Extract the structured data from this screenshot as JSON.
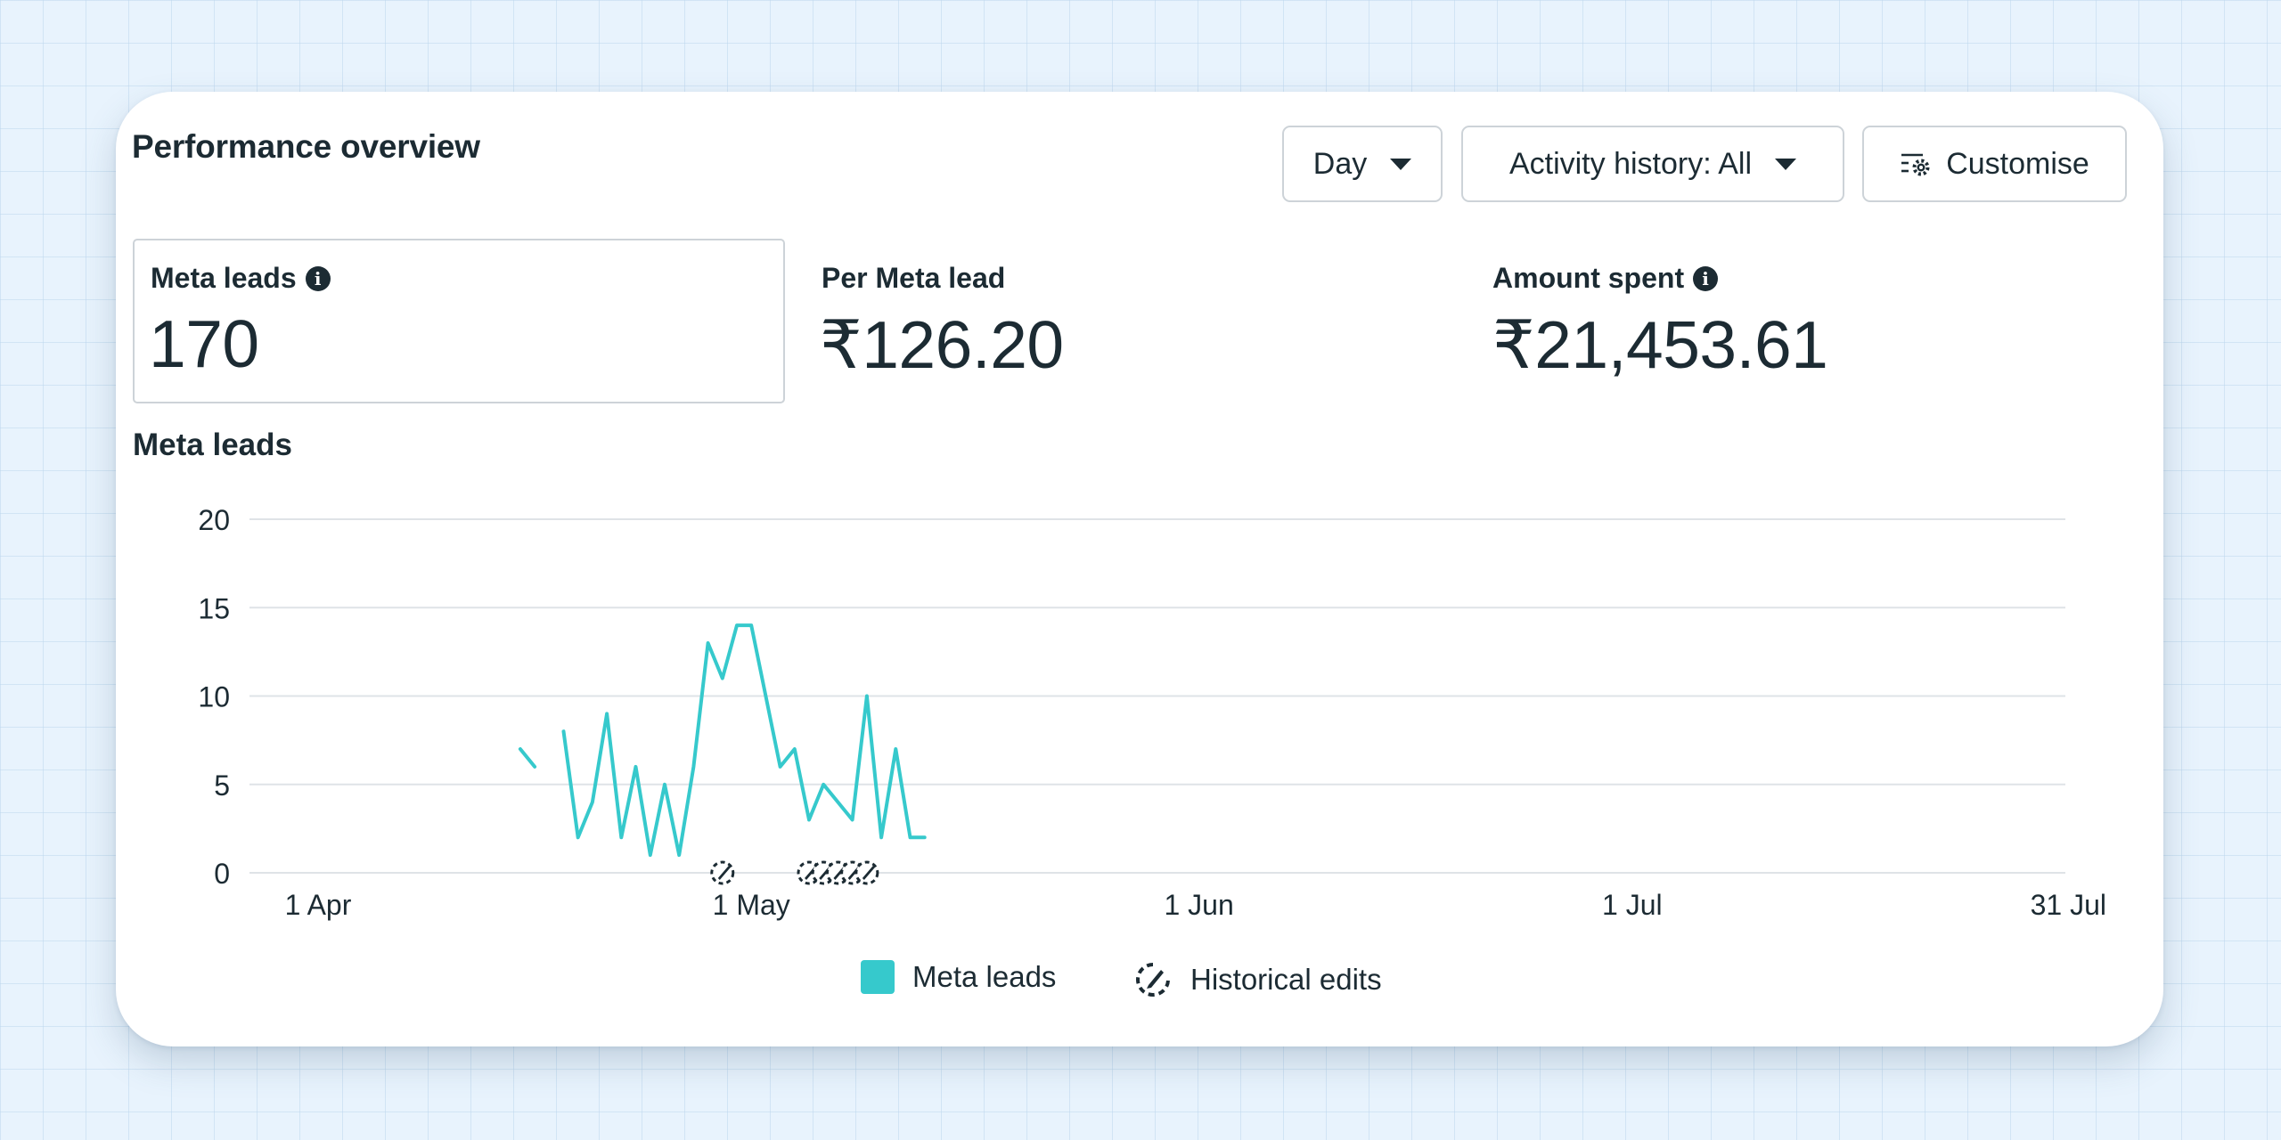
{
  "panel": {
    "title": "Performance overview"
  },
  "controls": {
    "period_label": "Day",
    "activity_label": "Activity history: All",
    "customise_label": "Customise"
  },
  "metrics": [
    {
      "label": "Meta leads",
      "value": "170",
      "has_info_icon": true
    },
    {
      "label": "Per Meta lead",
      "value": "₹126.20",
      "has_info_icon": false
    },
    {
      "label": "Amount spent",
      "value": "₹21,453.61",
      "has_info_icon": true
    }
  ],
  "chart": {
    "title": "Meta leads"
  },
  "colors": {
    "series": "#36c9cc",
    "text": "#1c2b33",
    "grid": "#dfe3e7"
  },
  "icons": [
    "info-icon",
    "caret-down-icon",
    "customise-gear-icon",
    "historical-edit-icon"
  ],
  "legend": {
    "series_label": "Meta leads",
    "edits_label": "Historical edits"
  },
  "chart_data": {
    "type": "line",
    "ylim": [
      0,
      20
    ],
    "y_ticks": [
      "0",
      "5",
      "10",
      "15",
      "20"
    ],
    "x_range": [
      "2024-04-01",
      "2024-07-31"
    ],
    "x_ticks": [
      {
        "date": "2024-04-01",
        "label": "1 Apr"
      },
      {
        "date": "2024-05-01",
        "label": "1 May"
      },
      {
        "date": "2024-06-01",
        "label": "1 Jun"
      },
      {
        "date": "2024-07-01",
        "label": "1 Jul"
      },
      {
        "date": "2024-07-31",
        "label": "31 Jul"
      }
    ],
    "grid": true,
    "series": [
      {
        "name": "Meta leads",
        "segments": [
          [
            {
              "date": "2024-04-15",
              "value": 7
            },
            {
              "date": "2024-04-16",
              "value": 6
            }
          ],
          [
            {
              "date": "2024-04-18",
              "value": 8
            },
            {
              "date": "2024-04-19",
              "value": 2
            },
            {
              "date": "2024-04-20",
              "value": 4
            },
            {
              "date": "2024-04-21",
              "value": 9
            },
            {
              "date": "2024-04-22",
              "value": 2
            },
            {
              "date": "2024-04-23",
              "value": 6
            },
            {
              "date": "2024-04-24",
              "value": 1
            },
            {
              "date": "2024-04-25",
              "value": 5
            },
            {
              "date": "2024-04-26",
              "value": 1
            },
            {
              "date": "2024-04-27",
              "value": 6
            },
            {
              "date": "2024-04-28",
              "value": 13
            },
            {
              "date": "2024-04-29",
              "value": 11
            },
            {
              "date": "2024-04-30",
              "value": 14
            },
            {
              "date": "2024-05-01",
              "value": 14
            },
            {
              "date": "2024-05-02",
              "value": 10
            },
            {
              "date": "2024-05-03",
              "value": 6
            },
            {
              "date": "2024-05-04",
              "value": 7
            },
            {
              "date": "2024-05-05",
              "value": 3
            },
            {
              "date": "2024-05-06",
              "value": 5
            },
            {
              "date": "2024-05-07",
              "value": 4
            },
            {
              "date": "2024-05-08",
              "value": 3
            },
            {
              "date": "2024-05-09",
              "value": 10
            },
            {
              "date": "2024-05-10",
              "value": 2
            },
            {
              "date": "2024-05-11",
              "value": 7
            },
            {
              "date": "2024-05-12",
              "value": 2
            },
            {
              "date": "2024-05-13",
              "value": 2
            }
          ]
        ]
      }
    ],
    "historical_edits": [
      "2024-04-29",
      "2024-05-05",
      "2024-05-06",
      "2024-05-07",
      "2024-05-08",
      "2024-05-09"
    ],
    "legend": [
      "Meta leads",
      "Historical edits"
    ],
    "legend_position": "bottom"
  }
}
